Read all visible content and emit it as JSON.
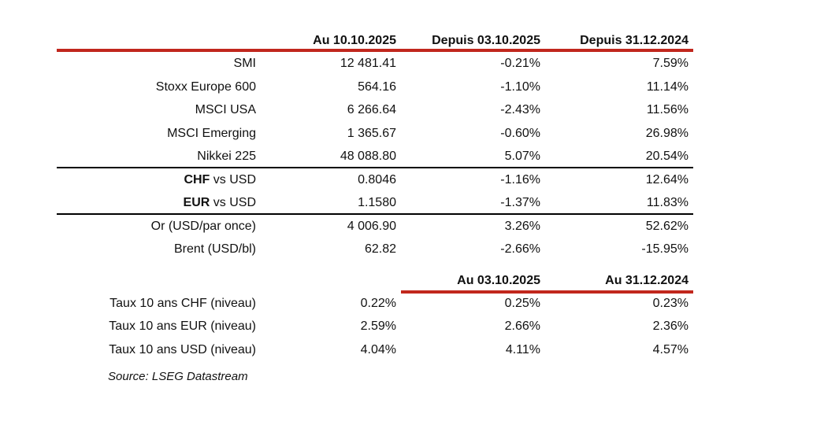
{
  "colors": {
    "accent_red": "#c1271d",
    "rule_black": "#000000",
    "text": "#111111",
    "background": "#ffffff"
  },
  "table1": {
    "headers": [
      "",
      "Au 10.10.2025",
      "Depuis 03.10.2025",
      "Depuis 31.12.2024"
    ],
    "rows": [
      {
        "label_bold": "",
        "label_rest": "SMI",
        "values": [
          "12 481.41",
          "-0.21%",
          "7.59%"
        ]
      },
      {
        "label_bold": "",
        "label_rest": "Stoxx Europe 600",
        "values": [
          "564.16",
          "-1.10%",
          "11.14%"
        ]
      },
      {
        "label_bold": "",
        "label_rest": "MSCI USA",
        "values": [
          "6 266.64",
          "-2.43%",
          "11.56%"
        ]
      },
      {
        "label_bold": "",
        "label_rest": "MSCI Emerging",
        "values": [
          "1 365.67",
          "-0.60%",
          "26.98%"
        ]
      },
      {
        "label_bold": "",
        "label_rest": "Nikkei 225",
        "values": [
          "48 088.80",
          "5.07%",
          "20.54%"
        ]
      },
      {
        "label_bold": "CHF",
        "label_rest": " vs USD",
        "values": [
          "0.8046",
          "-1.16%",
          "12.64%"
        ]
      },
      {
        "label_bold": "EUR",
        "label_rest": " vs USD",
        "values": [
          "1.1580",
          "-1.37%",
          "11.83%"
        ]
      },
      {
        "label_bold": "",
        "label_rest": "Or (USD/par once)",
        "values": [
          "4 006.90",
          "3.26%",
          "52.62%"
        ]
      },
      {
        "label_bold": "",
        "label_rest": "Brent (USD/bl)",
        "values": [
          "62.82",
          "-2.66%",
          "-15.95%"
        ]
      }
    ]
  },
  "table2": {
    "headers": [
      "",
      "",
      "Au 03.10.2025",
      "Au 31.12.2024"
    ],
    "rows": [
      {
        "label_bold": "",
        "label_rest": "Taux 10 ans CHF (niveau)",
        "values": [
          "0.22%",
          "0.25%",
          "0.23%"
        ]
      },
      {
        "label_bold": "",
        "label_rest": "Taux 10 ans EUR (niveau)",
        "values": [
          "2.59%",
          "2.66%",
          "2.36%"
        ]
      },
      {
        "label_bold": "",
        "label_rest": "Taux 10 ans USD (niveau)",
        "values": [
          "4.04%",
          "4.11%",
          "4.57%"
        ]
      }
    ]
  },
  "source": "Source: LSEG Datastream"
}
